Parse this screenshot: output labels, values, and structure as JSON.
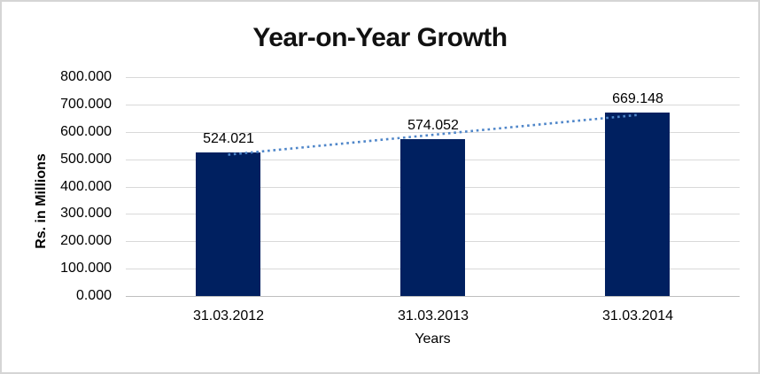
{
  "chart_data": {
    "type": "bar",
    "title": "Year-on-Year Growth",
    "xlabel": "Years",
    "ylabel": "Rs. in Millions",
    "categories": [
      "31.03.2012",
      "31.03.2013",
      "31.03.2014"
    ],
    "values": [
      524.021,
      574.052,
      669.148
    ],
    "data_labels": [
      "524.021",
      "574.052",
      "669.148"
    ],
    "ylim": [
      0,
      800
    ],
    "ytick_step": 100,
    "ytick_labels": [
      "0.000",
      "100.000",
      "200.000",
      "300.000",
      "400.000",
      "500.000",
      "600.000",
      "700.000",
      "800.000"
    ],
    "grid": true,
    "legend": "none",
    "trendline": {
      "type": "linear",
      "style": "dotted"
    },
    "colors": {
      "bar": "#002060",
      "trendline": "#4f86c9",
      "gridline": "#d9d9d9",
      "axis_line": "#bfbfbf",
      "text": "#000000",
      "background": "#ffffff",
      "frame_border": "#d5d5d5"
    }
  }
}
